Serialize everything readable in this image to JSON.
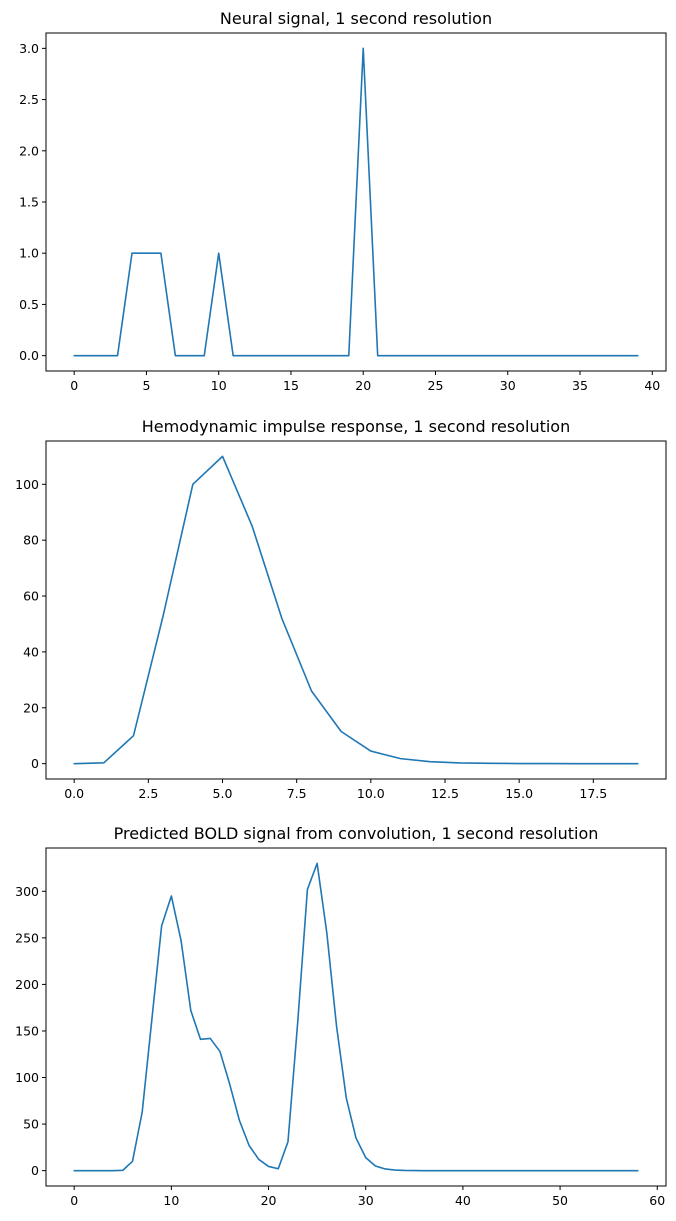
{
  "colors": {
    "series": "#1f77b4",
    "axes": "#000000",
    "background": "#ffffff"
  },
  "chart_data": [
    {
      "type": "line",
      "title": "Neural signal, 1 second resolution",
      "xlabel": "",
      "ylabel": "",
      "xlim": [
        -1.95,
        40.95
      ],
      "ylim": [
        -0.15,
        3.15
      ],
      "xticks": [
        0,
        5,
        10,
        15,
        20,
        25,
        30,
        35,
        40
      ],
      "xtick_labels": [
        "0",
        "5",
        "10",
        "15",
        "20",
        "25",
        "30",
        "35",
        "40"
      ],
      "yticks": [
        0,
        0.5,
        1,
        1.5,
        2,
        2.5,
        3
      ],
      "ytick_labels": [
        "0.0",
        "0.5",
        "1.0",
        "1.5",
        "2.0",
        "2.5",
        "3.0"
      ],
      "grid": false,
      "legend": "none",
      "series": [
        {
          "x": [
            0,
            1,
            2,
            3,
            4,
            5,
            6,
            7,
            8,
            9,
            10,
            11,
            12,
            13,
            14,
            15,
            16,
            17,
            18,
            19,
            20,
            21,
            22,
            23,
            24,
            25,
            26,
            27,
            28,
            29,
            30,
            31,
            32,
            33,
            34,
            35,
            36,
            37,
            38,
            39
          ],
          "y": [
            0,
            0,
            0,
            0,
            1,
            1,
            1,
            0,
            0,
            0,
            1,
            0,
            0,
            0,
            0,
            0,
            0,
            0,
            0,
            0,
            3,
            0,
            0,
            0,
            0,
            0,
            0,
            0,
            0,
            0,
            0,
            0,
            0,
            0,
            0,
            0,
            0,
            0,
            0,
            0
          ]
        }
      ]
    },
    {
      "type": "line",
      "title": "Hemodynamic impulse response, 1 second resolution",
      "xlabel": "",
      "ylabel": "",
      "xlim": [
        -0.95,
        19.95
      ],
      "ylim": [
        -5.5,
        115.5
      ],
      "xticks": [
        0,
        2.5,
        5,
        7.5,
        10,
        12.5,
        15,
        17.5
      ],
      "xtick_labels": [
        "0.0",
        "2.5",
        "5.0",
        "7.5",
        "10.0",
        "12.5",
        "15.0",
        "17.5"
      ],
      "yticks": [
        0,
        20,
        40,
        60,
        80,
        100
      ],
      "ytick_labels": [
        "0",
        "20",
        "40",
        "60",
        "80",
        "100"
      ],
      "grid": false,
      "legend": "none",
      "series": [
        {
          "x": [
            0,
            1,
            2,
            3,
            4,
            5,
            6,
            7,
            8,
            9,
            10,
            11,
            12,
            13,
            14,
            15,
            16,
            17,
            18,
            19
          ],
          "y": [
            0,
            0.3,
            10,
            53,
            100,
            110,
            85,
            52,
            26,
            11.5,
            4.5,
            1.8,
            0.7,
            0.25,
            0.1,
            0.03,
            0.01,
            0,
            0,
            0
          ]
        }
      ]
    },
    {
      "type": "line",
      "title": "Predicted BOLD signal from convolution, 1 second resolution",
      "xlabel": "",
      "ylabel": "",
      "xlim": [
        -2.9,
        60.9
      ],
      "ylim": [
        -16.5,
        346.5
      ],
      "xticks": [
        0,
        10,
        20,
        30,
        40,
        50,
        60
      ],
      "xtick_labels": [
        "0",
        "10",
        "20",
        "30",
        "40",
        "50",
        "60"
      ],
      "yticks": [
        0,
        50,
        100,
        150,
        200,
        250,
        300
      ],
      "ytick_labels": [
        "0",
        "50",
        "100",
        "150",
        "200",
        "250",
        "300"
      ],
      "grid": false,
      "legend": "none",
      "series": [
        {
          "x": [
            0,
            1,
            2,
            3,
            4,
            5,
            6,
            7,
            8,
            9,
            10,
            11,
            12,
            13,
            14,
            15,
            16,
            17,
            18,
            19,
            20,
            21,
            22,
            23,
            24,
            25,
            26,
            27,
            28,
            29,
            30,
            31,
            32,
            33,
            34,
            35,
            36,
            37,
            38,
            39,
            40,
            41,
            42,
            43,
            44,
            45,
            46,
            47,
            48,
            49,
            50,
            51,
            52,
            53,
            54,
            55,
            56,
            57,
            58
          ],
          "y": [
            0,
            0,
            0,
            0,
            0,
            0.3,
            10,
            63,
            163,
            263,
            295,
            247,
            172,
            141,
            142,
            128,
            93,
            54,
            27,
            12,
            4.5,
            2,
            31,
            159,
            302,
            330,
            255,
            155,
            78,
            35,
            14,
            5,
            1.8,
            0.6,
            0.2,
            0.05,
            0,
            0,
            0,
            0,
            0,
            0,
            0,
            0,
            0,
            0,
            0,
            0,
            0,
            0,
            0,
            0,
            0,
            0,
            0,
            0,
            0,
            0,
            0
          ]
        }
      ]
    }
  ]
}
